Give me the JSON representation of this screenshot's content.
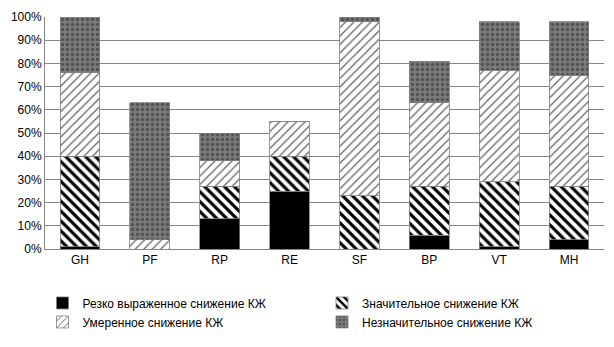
{
  "chart_data": {
    "type": "bar",
    "stacked": true,
    "grid": true,
    "legend": "bottom",
    "categories": [
      "GH",
      "PF",
      "RP",
      "RE",
      "SF",
      "BP",
      "VT",
      "MH"
    ],
    "series": [
      {
        "name": "Резко выраженное снижение КЖ",
        "color": "#000000",
        "values": [
          1,
          0,
          13,
          25,
          0,
          6,
          1,
          4
        ]
      },
      {
        "name": "Значительное снижение КЖ",
        "color": "#000000",
        "values": [
          39,
          0,
          14,
          15,
          23,
          21,
          28,
          23
        ]
      },
      {
        "name": "Умеренное снижение КЖ",
        "color": "#606060",
        "values": [
          36,
          4,
          11,
          15,
          75,
          36,
          48,
          48
        ]
      },
      {
        "name": "Незначительное снижение КЖ",
        "color": "#7a7a7a",
        "values": [
          24,
          59,
          12,
          0,
          2,
          18,
          21,
          23
        ]
      }
    ],
    "ylim": [
      0,
      100
    ],
    "yticks": [
      {
        "value": 0,
        "label": "0%"
      },
      {
        "value": 10,
        "label": "10%"
      },
      {
        "value": 20,
        "label": "20%"
      },
      {
        "value": 30,
        "label": "30%"
      },
      {
        "value": 40,
        "label": "40%"
      },
      {
        "value": 50,
        "label": "50%"
      },
      {
        "value": 60,
        "label": "60%"
      },
      {
        "value": 70,
        "label": "70%"
      },
      {
        "value": 80,
        "label": "80%"
      },
      {
        "value": 90,
        "label": "90%"
      },
      {
        "value": 100,
        "label": "100%"
      }
    ]
  }
}
